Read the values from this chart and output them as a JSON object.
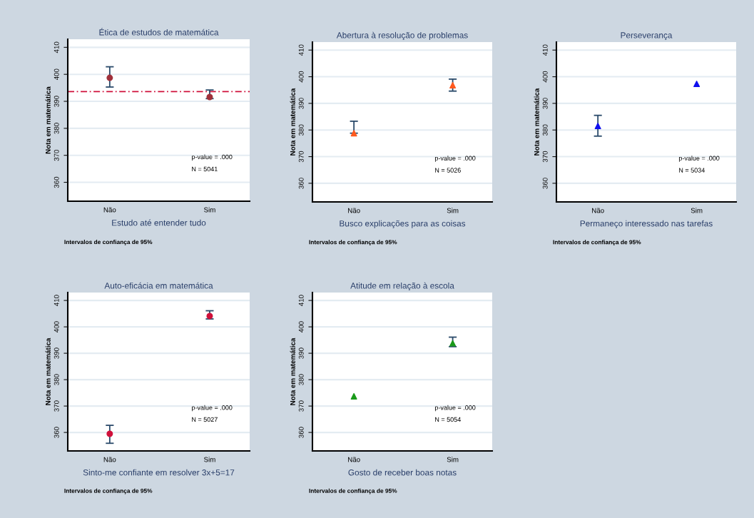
{
  "chart_data": [
    {
      "type": "scatter",
      "title": "Ética de estudos de matemática",
      "xlabel": "Estudo até entender tudo",
      "ylabel": "Nota em matemática",
      "categories": [
        "Não",
        "Sim"
      ],
      "series": [
        {
          "color": "#a0303a",
          "values": [
            398.7,
            391.6
          ],
          "errors": [
            [
              395.3,
              402.8
            ],
            [
              391.0,
              394.2
            ]
          ]
        }
      ],
      "ylim": [
        353,
        413
      ],
      "yticks": [
        360,
        370,
        380,
        390,
        400,
        410
      ],
      "grid": "y",
      "marker": "circle",
      "ref_lines": [
        {
          "axis": "y",
          "value": 393.6,
          "color": "#d0103a",
          "line_style": "dashed"
        }
      ],
      "annotations": [
        "p-value = .000",
        "N = 5041",
        "Intervalos de confiança de 95%"
      ]
    },
    {
      "type": "scatter",
      "title": "Abertura à resolução de problemas",
      "xlabel": "Busco explicações para as coisas",
      "ylabel": "Nota em matemática",
      "categories": [
        "Não",
        "Sim"
      ],
      "series": [
        {
          "color": "#ff5a1f",
          "values": [
            378.8,
            396.8
          ],
          "errors": [
            [
              378.8,
              383.3
            ],
            [
              394.6,
              399.1
            ]
          ]
        }
      ],
      "ylim": [
        353,
        413
      ],
      "yticks": [
        360,
        370,
        380,
        390,
        400,
        410
      ],
      "grid": "y",
      "marker": "triangle",
      "annotations": [
        "p-value = .000",
        "N = 5026",
        "Intervalos de confiança de 95%"
      ]
    },
    {
      "type": "scatter",
      "title": "Perseverança",
      "xlabel": "Permaneço interessado nas tarefas",
      "ylabel": "Nota em matemática",
      "categories": [
        "Não",
        "Sim"
      ],
      "series": [
        {
          "color": "#1010ee",
          "values": [
            381.5,
            397.3
          ],
          "errors": [
            [
              377.7,
              385.5
            ],
            null
          ]
        }
      ],
      "ylim": [
        353,
        413
      ],
      "yticks": [
        360,
        370,
        380,
        390,
        400,
        410
      ],
      "grid": "y",
      "marker": "triangle",
      "annotations": [
        "p-value = .000",
        "N = 5034",
        "Intervalos de confiança de 95%"
      ]
    },
    {
      "type": "scatter",
      "title": "Auto-eficácia em matemática",
      "xlabel": "Sinto-me confiante em resolver 3x+5=17",
      "ylabel": "Nota em matemática",
      "categories": [
        "Não",
        "Sim"
      ],
      "series": [
        {
          "color": "#d0103a",
          "values": [
            359.5,
            404.1
          ],
          "errors": [
            [
              355.9,
              362.7
            ],
            [
              403.0,
              406.1
            ]
          ]
        }
      ],
      "ylim": [
        353,
        413
      ],
      "yticks": [
        360,
        370,
        380,
        390,
        400,
        410
      ],
      "grid": "y",
      "marker": "circle",
      "annotations": [
        "p-value = .000",
        "N = 5027",
        "Intervalos de confiança de 95%"
      ]
    },
    {
      "type": "scatter",
      "title": "Atitude em relação à escola",
      "xlabel": "Gosto de receber boas notas",
      "ylabel": "Nota em matemática",
      "categories": [
        "Não",
        "Sim"
      ],
      "series": [
        {
          "color": "#1a9a1a",
          "values": [
            373.7,
            393.8
          ],
          "errors": [
            null,
            [
              392.5,
              396.1
            ]
          ]
        }
      ],
      "ylim": [
        353,
        413
      ],
      "yticks": [
        360,
        370,
        380,
        390,
        400,
        410
      ],
      "grid": "y",
      "marker": "triangle",
      "annotations": [
        "p-value = .000",
        "N = 5054",
        "Intervalos de confiança de 95%"
      ]
    }
  ]
}
